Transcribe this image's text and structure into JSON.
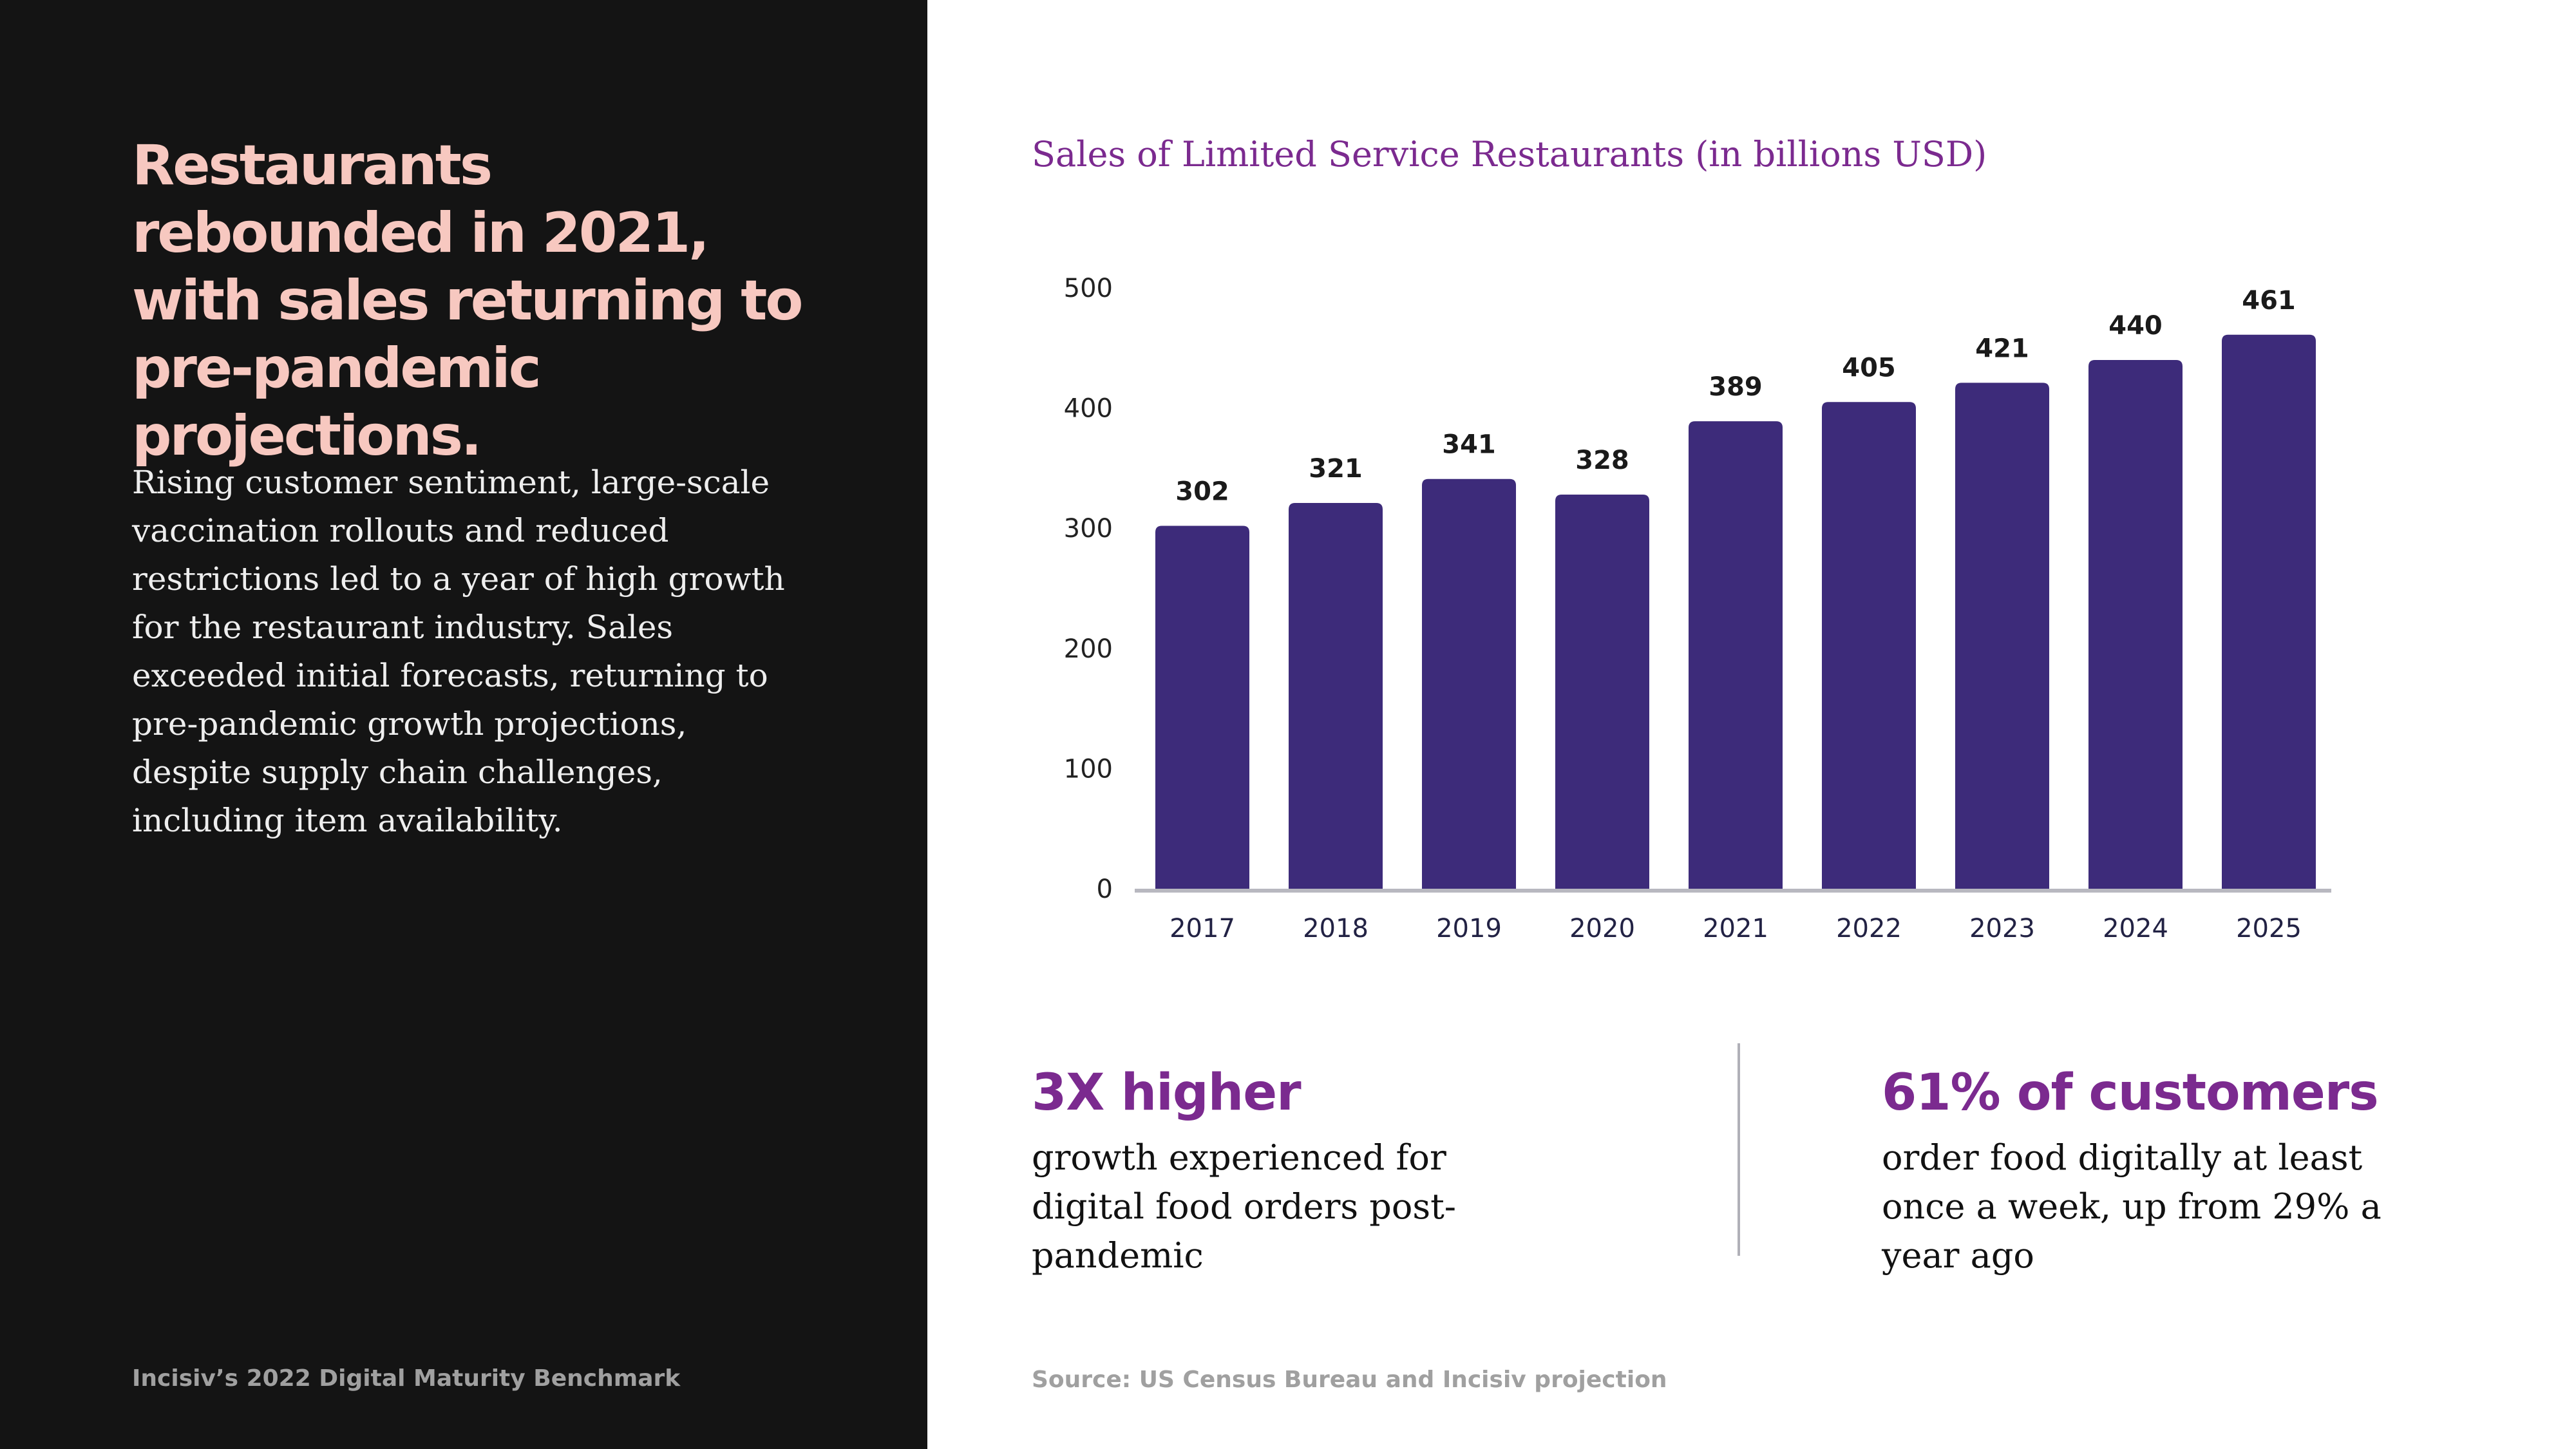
{
  "headline": "Restaurants rebounded in 2021, with sales returning to pre-pandemic projections.",
  "body": "Rising customer sentiment, large-scale vaccination rollouts and reduced restrictions led to a year of high growth for the restaurant industry. Sales exceeded initial forecasts, returning to pre-pandemic growth projections, despite supply chain challenges, including item availability.",
  "footer_left": "Incisiv’s 2022 Digital Maturity Benchmark",
  "chart_data": {
    "type": "bar",
    "title": "Sales of Limited Service Restaurants (in billions USD)",
    "categories": [
      "2017",
      "2018",
      "2019",
      "2020",
      "2021",
      "2022",
      "2023",
      "2024",
      "2025"
    ],
    "values": [
      302,
      321,
      341,
      328,
      389,
      405,
      421,
      440,
      461
    ],
    "xlabel": "",
    "ylabel": "",
    "ylim": [
      0,
      500
    ],
    "yticks": [
      0,
      100,
      200,
      300,
      400,
      500
    ],
    "grid": false,
    "legend": "none",
    "bar_color": "#3d2b7a",
    "axis_color": "#b8b8c0",
    "label_color": "#1a1a1a"
  },
  "stats": [
    {
      "headline": "3X higher",
      "description": "growth experienced for digital food orders post-pandemic"
    },
    {
      "headline": "61% of customers",
      "description": "order food digitally at least once a week, up from 29% a year ago"
    }
  ],
  "source": "Source: US Census Bureau and Incisiv projection"
}
